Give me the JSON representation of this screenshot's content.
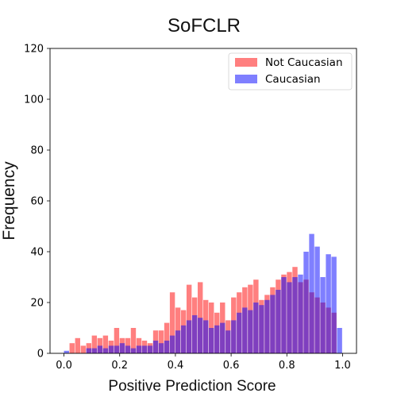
{
  "chart_data": {
    "type": "bar",
    "title": "SoFCLR",
    "xlabel": "Positive Prediction Score",
    "ylabel": "Frequency",
    "xlim": [
      -0.05,
      1.05
    ],
    "ylim": [
      0,
      120
    ],
    "xticks": [
      "0.0",
      "0.2",
      "0.4",
      "0.6",
      "0.8",
      "1.0"
    ],
    "xtick_values": [
      0.0,
      0.2,
      0.4,
      0.6,
      0.8,
      1.0
    ],
    "yticks": [
      "0",
      "20",
      "40",
      "60",
      "80",
      "100",
      "120"
    ],
    "ytick_values": [
      0,
      20,
      40,
      60,
      80,
      100,
      120
    ],
    "bin_start": 0.0,
    "bin_width": 0.02,
    "legend_position": "top-right",
    "series": [
      {
        "name": "Not Caucasian",
        "color": "#ff0000",
        "opacity": 0.5,
        "values": [
          0,
          4,
          6,
          3,
          4,
          7,
          6,
          7,
          5,
          10,
          6,
          6,
          10,
          6,
          5,
          4,
          9,
          9,
          12,
          24,
          18,
          17,
          27,
          22,
          28,
          21,
          20,
          16,
          20,
          13,
          22,
          24,
          26,
          27,
          29,
          21,
          23,
          26,
          29,
          31,
          32,
          34,
          28,
          29,
          24,
          22,
          20,
          18,
          16,
          0
        ]
      },
      {
        "name": "Caucasian",
        "color": "#0000ff",
        "opacity": 0.5,
        "values": [
          1,
          0,
          0,
          0,
          2,
          2,
          3,
          2,
          3,
          3,
          4,
          3,
          2,
          3,
          3,
          3,
          5,
          4,
          5,
          7,
          9,
          11,
          13,
          15,
          14,
          13,
          10,
          11,
          12,
          9,
          13,
          16,
          18,
          17,
          20,
          19,
          21,
          23,
          25,
          30,
          28,
          30,
          31,
          40,
          47,
          42,
          30,
          39,
          38,
          10
        ]
      }
    ]
  }
}
